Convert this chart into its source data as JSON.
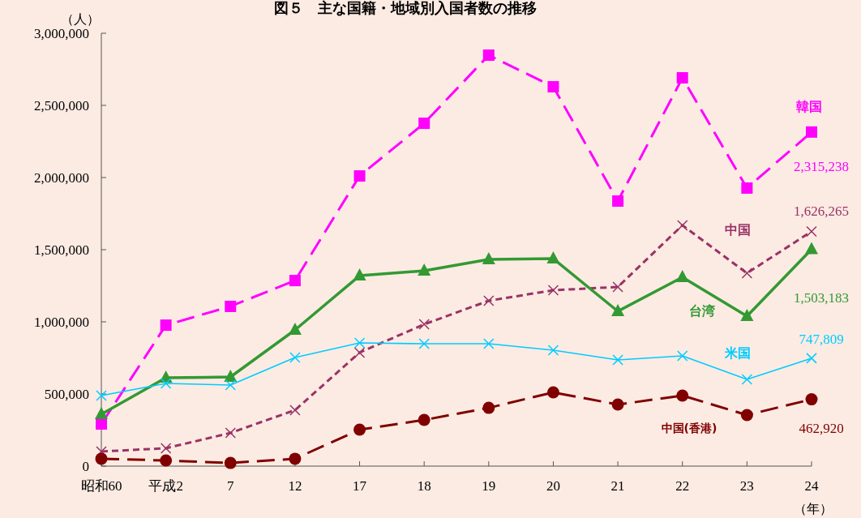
{
  "chart_data": {
    "type": "line",
    "title": "図５　主な国籍・地域別入国者数の推移",
    "ylabel": "（人）",
    "xlabel": "（年）",
    "categories": [
      "昭和60",
      "平成2",
      "7",
      "12",
      "17",
      "18",
      "19",
      "20",
      "21",
      "22",
      "23",
      "24"
    ],
    "ylim": [
      0,
      3000000
    ],
    "yticks": [
      {
        "value": 0,
        "label": "0"
      },
      {
        "value": 500000,
        "label": "500,000"
      },
      {
        "value": 1000000,
        "label": "1,000,000"
      },
      {
        "value": 1500000,
        "label": "1,500,000"
      },
      {
        "value": 2000000,
        "label": "2,000,000"
      },
      {
        "value": 2500000,
        "label": "2,500,000"
      },
      {
        "value": 3000000,
        "label": "3,000,000"
      }
    ],
    "grid": false,
    "series": [
      {
        "name": "韓国",
        "color": "#ff00ff",
        "marker": "square",
        "line_style": "dashed",
        "values": [
          292000,
          977000,
          1107000,
          1286000,
          2011000,
          2376000,
          2848000,
          2629000,
          1837000,
          2691000,
          1927000,
          2315238
        ],
        "value_labels": [
          null,
          null,
          null,
          null,
          null,
          null,
          null,
          null,
          null,
          null,
          null,
          "2,315,238"
        ]
      },
      {
        "name": "中国",
        "color": "#993366",
        "marker": "cross",
        "line_style": "dotted",
        "values": [
          101000,
          124000,
          230000,
          388000,
          787000,
          983000,
          1146000,
          1219000,
          1242000,
          1669000,
          1337000,
          1626265
        ],
        "value_labels": [
          null,
          null,
          null,
          null,
          null,
          null,
          null,
          null,
          null,
          null,
          null,
          "1,626,265"
        ]
      },
      {
        "name": "台湾",
        "color": "#339933",
        "marker": "triangle",
        "line_style": "solid",
        "values": [
          360000,
          612000,
          618000,
          944000,
          1320000,
          1354000,
          1433000,
          1438000,
          1073000,
          1309000,
          1039000,
          1503183
        ],
        "value_labels": [
          null,
          null,
          null,
          null,
          null,
          null,
          null,
          null,
          null,
          null,
          null,
          "1,503,183"
        ]
      },
      {
        "name": "米国",
        "color": "#00ccff",
        "marker": "cross",
        "line_style": "solid",
        "values": [
          489000,
          573000,
          562000,
          753000,
          854000,
          848000,
          848000,
          803000,
          736000,
          764000,
          601000,
          747809
        ],
        "value_labels": [
          null,
          null,
          null,
          null,
          null,
          null,
          null,
          null,
          null,
          null,
          null,
          "747,809"
        ]
      },
      {
        "name": "中国(香港)",
        "color": "#800000",
        "marker": "circle",
        "line_style": "dashed",
        "values": [
          51000,
          39000,
          22000,
          51000,
          253000,
          320000,
          404000,
          511000,
          427000,
          489000,
          354000,
          462920
        ],
        "value_labels": [
          null,
          null,
          null,
          null,
          null,
          null,
          null,
          null,
          null,
          null,
          null,
          "462,920"
        ]
      }
    ]
  }
}
